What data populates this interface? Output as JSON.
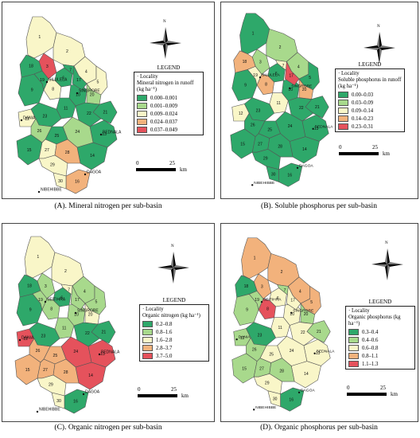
{
  "palette": {
    "dark_green": "#2ea86a",
    "light_green": "#a8d98c",
    "cream": "#f9f6c8",
    "orange": "#f2b27c",
    "red": "#e5525c"
  },
  "panels": [
    {
      "id": "A",
      "caption": "(A). Mineral nitrogen per sub-basin",
      "legend_title": "LEGEND",
      "legend_locality": "· Locality",
      "legend_header": "Mineral nitrogen in runoff (kg ha⁻¹)",
      "classes": [
        {
          "label": "0.000–0.001",
          "color": "#2ea86a"
        },
        {
          "label": "0.001–0.009",
          "color": "#a8d98c"
        },
        {
          "label": "0.009–0.024",
          "color": "#f9f6c8"
        },
        {
          "label": "0.024–0.037",
          "color": "#f2b27c"
        },
        {
          "label": "0.037–0.049",
          "color": "#e5525c"
        }
      ],
      "scale_0": "0",
      "scale_1": "25",
      "scale_unit": "km",
      "north_label": "N",
      "localities": [
        "SILULELA",
        "SINGRORE",
        "DANIA",
        "BEDNALA",
        "DAGOA",
        "NIBEHIBBE"
      ]
    },
    {
      "id": "B",
      "caption": "(B). Soluble phosphorus per sub-basin",
      "legend_title": "LEGEND",
      "legend_locality": "· Locality",
      "legend_header": "Soluble phosphorus in runoff (kg ha⁻¹)",
      "classes": [
        {
          "label": "0.00–0.03",
          "color": "#2ea86a"
        },
        {
          "label": "0.03–0.09",
          "color": "#a8d98c"
        },
        {
          "label": "0.09–0.14",
          "color": "#f9f6c8"
        },
        {
          "label": "0.14–0.23",
          "color": "#f2b27c"
        },
        {
          "label": "0.23–0.31",
          "color": "#e5525c"
        }
      ],
      "scale_0": "0",
      "scale_1": "25",
      "scale_unit": "km",
      "north_label": "N",
      "localities": [
        "SILULELA",
        "SINGRORE",
        "BEDNALA",
        "DAGOA",
        "NIBEHIBBE"
      ]
    },
    {
      "id": "C",
      "caption": "(C). Organic nitrogen per sub-basin",
      "legend_title": "LEGEND",
      "legend_locality": "· Locality",
      "legend_header": "Organic nitrogen (kg ha⁻¹)",
      "classes": [
        {
          "label": "0.2–0.8",
          "color": "#2ea86a"
        },
        {
          "label": "0.8–1.6",
          "color": "#a8d98c"
        },
        {
          "label": "1.6–2.8",
          "color": "#f9f6c8"
        },
        {
          "label": "2.8–3.7",
          "color": "#f2b27c"
        },
        {
          "label": "3.7–5.0",
          "color": "#e5525c"
        }
      ],
      "scale_0": "0",
      "scale_1": "25",
      "scale_unit": "km",
      "north_label": "N",
      "localities": [
        "SEITIHRA",
        "SINGRORE",
        "DANIA",
        "BEDNALA",
        "DAGOA",
        "NIBEHIBBE"
      ]
    },
    {
      "id": "D",
      "caption": "(D). Organic phosphorus per sub-basin",
      "legend_title": "LEGEND",
      "legend_locality": "· Locality",
      "legend_header": "Organic phosphorus (kg ha⁻¹)",
      "classes": [
        {
          "label": "0.3–0.4",
          "color": "#2ea86a"
        },
        {
          "label": "0.4–0.6",
          "color": "#a8d98c"
        },
        {
          "label": "0.6–0.8",
          "color": "#f9f6c8"
        },
        {
          "label": "0.8–1.1",
          "color": "#f2b27c"
        },
        {
          "label": "1.1–1.3",
          "color": "#e5525c"
        }
      ],
      "scale_0": "0",
      "scale_1": "25",
      "scale_unit": "km",
      "north_label": "N",
      "localities": [
        "SEITIHRA",
        "SINGRORE",
        "DANIA",
        "BEDNALA",
        "DAGOA",
        "NIBEHIBBE"
      ]
    }
  ],
  "subbasins": [
    "1",
    "2",
    "3",
    "4",
    "5",
    "6",
    "7",
    "8",
    "9",
    "10",
    "11",
    "12",
    "13",
    "14",
    "15",
    "16",
    "17",
    "18",
    "19",
    "20",
    "21",
    "22",
    "23",
    "24",
    "25",
    "26",
    "27",
    "28",
    "29",
    "30"
  ],
  "fills": {
    "A": [
      "cream",
      "cream",
      "red",
      "cream",
      "cream",
      "dark_green",
      "dark_green",
      "cream",
      "dark_green",
      "dark_green",
      "dark_green",
      "cream",
      "dark_green",
      "dark_green",
      "dark_green",
      "orange",
      "dark_green",
      "dark_green",
      "dark_green",
      "light_green",
      "dark_green",
      "dark_green",
      "dark_green",
      "light_green",
      "dark_green",
      "light_green",
      "cream",
      "orange",
      "cream",
      "cream"
    ],
    "B": [
      "dark_green",
      "light_green",
      "light_green",
      "light_green",
      "dark_green",
      "dark_green",
      "cream",
      "orange",
      "dark_green",
      "dark_green",
      "cream",
      "cream",
      "dark_green",
      "dark_green",
      "dark_green",
      "dark_green",
      "red",
      "orange",
      "cream",
      "orange",
      "dark_green",
      "dark_green",
      "dark_green",
      "dark_green",
      "dark_green",
      "dark_green",
      "dark_green",
      "dark_green",
      "dark_green",
      "dark_green"
    ],
    "C": [
      "cream",
      "cream",
      "light_green",
      "light_green",
      "light_green",
      "dark_green",
      "cream",
      "light_green",
      "dark_green",
      "light_green",
      "light_green",
      "red",
      "red",
      "red",
      "orange",
      "dark_green",
      "light_green",
      "dark_green",
      "light_green",
      "cream",
      "dark_green",
      "dark_green",
      "dark_green",
      "red",
      "orange",
      "orange",
      "orange",
      "orange",
      "cream",
      "cream"
    ],
    "D": [
      "orange",
      "orange",
      "orange",
      "orange",
      "orange",
      "cream",
      "light_green",
      "red",
      "light_green",
      "cream",
      "cream",
      "light_green",
      "cream",
      "cream",
      "light_green",
      "dark_green",
      "cream",
      "dark_green",
      "light_green",
      "light_green",
      "light_green",
      "cream",
      "dark_green",
      "cream",
      "cream",
      "light_green",
      "light_green",
      "light_green",
      "cream",
      "cream"
    ]
  }
}
